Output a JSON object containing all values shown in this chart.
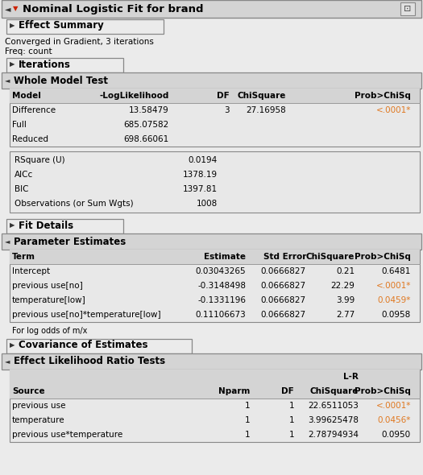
{
  "title": "Nominal Logistic Fit for brand",
  "bg_color": "#ebebeb",
  "header_bg": "#d4d4d4",
  "section_bg": "#d4d4d4",
  "table_bg": "#e8e8e8",
  "white": "#ffffff",
  "orange": "#e07820",
  "black": "#000000",
  "converged_text": "Converged in Gradient, 3 iterations",
  "freq_text": "Freq: count",
  "wmt_headers": [
    "Model",
    "-LogLikelihood",
    "DF",
    "ChiSquare",
    "Prob>ChiSq"
  ],
  "wmt_rows": [
    [
      "Difference",
      "13.58479",
      "3",
      "27.16958",
      "<.0001*"
    ],
    [
      "Full",
      "685.07582",
      "",
      "",
      ""
    ],
    [
      "Reduced",
      "698.66061",
      "",
      "",
      ""
    ]
  ],
  "stats_labels": [
    "RSquare (U)",
    "AICc",
    "BIC",
    "Observations (or Sum Wgts)"
  ],
  "stats_values": [
    "0.0194",
    "1378.19",
    "1397.81",
    "1008"
  ],
  "pe_headers": [
    "Term",
    "Estimate",
    "Std Error",
    "ChiSquare",
    "Prob>ChiSq"
  ],
  "pe_rows": [
    [
      "Intercept",
      "0.03043265",
      "0.0666827",
      "0.21",
      "0.6481"
    ],
    [
      "previous use[no]",
      "-0.3148498",
      "0.0666827",
      "22.29",
      "<.0001*"
    ],
    [
      "temperature[low]",
      "-0.1331196",
      "0.0666827",
      "3.99",
      "0.0459*"
    ],
    [
      "previous use[no]*temperature[low]",
      "0.11106673",
      "0.0666827",
      "2.77",
      "0.0958"
    ]
  ],
  "pe_log_odds": "For log odds of m/x",
  "elr_headers_line1": "L-R",
  "elr_headers_line2": [
    "Source",
    "Nparm",
    "DF",
    "ChiSquare",
    "Prob>ChiSq"
  ],
  "elr_rows": [
    [
      "previous use",
      "1",
      "1",
      "22.6511053",
      "<.0001*"
    ],
    [
      "temperature",
      "1",
      "1",
      "3.99625478",
      "0.0456*"
    ],
    [
      "previous use*temperature",
      "1",
      "1",
      "2.78794934",
      "0.0950"
    ]
  ]
}
